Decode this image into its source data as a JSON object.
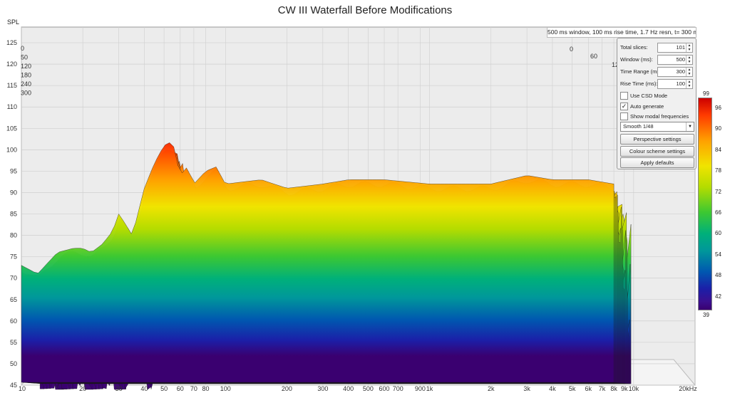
{
  "title": "CW III Waterfall Before Modifications",
  "info_text": "500 ms window, 100 ms rise time,  1.7 Hz resn, t= 300 ms",
  "panel": {
    "total_slices_label": "Total slices:",
    "total_slices": "101",
    "window_label": "Window (ms):",
    "window": "500",
    "time_range_label": "Time Range (ms):",
    "time_range": "300",
    "rise_time_label": "Rise Time (ms):",
    "rise_time": "100",
    "use_csd_label": "Use CSD Mode",
    "use_csd_checked": false,
    "auto_generate_label": "Auto generate",
    "auto_generate_checked": true,
    "show_modal_label": "Show modal frequencies",
    "show_modal_checked": false,
    "smoothing": "Smooth 1/48",
    "perspective_button": "Perspective settings",
    "colour_scheme_button": "Colour scheme settings",
    "apply_defaults_button": "Apply defaults"
  },
  "colorbar": {
    "max": "99",
    "min": "39",
    "labels": [
      "96",
      "90",
      "84",
      "78",
      "72",
      "66",
      "60",
      "54",
      "48",
      "42"
    ]
  },
  "chart_data": {
    "type": "area",
    "chart_style": "3d-waterfall",
    "ylabel": "SPL",
    "xlabel": "",
    "ylim": [
      45,
      125
    ],
    "y_ticks": [
      "125",
      "120",
      "115",
      "110",
      "105",
      "100",
      "95",
      "90",
      "85",
      "80",
      "75",
      "70",
      "65",
      "60",
      "55",
      "50",
      "45"
    ],
    "x_scale": "log",
    "xlim": [
      10,
      20000
    ],
    "x_ticks": [
      "10",
      "20",
      "30",
      "40",
      "50",
      "60",
      "70",
      "80",
      "100",
      "200",
      "300",
      "400",
      "500",
      "600",
      "700",
      "900",
      "1k",
      "2k",
      "3k",
      "4k",
      "5k",
      "6k",
      "7k",
      "8k",
      "9k",
      "10k",
      "20kHz"
    ],
    "time_ticks_left": [
      "0",
      "50",
      "120",
      "180",
      "240",
      "300"
    ],
    "time_ticks_right": [
      "0",
      "60",
      "12"
    ],
    "time_ms": [
      0,
      300
    ],
    "front_slice": {
      "x": [
        10,
        12,
        15,
        18,
        20,
        22,
        25,
        28,
        30,
        32,
        35,
        40,
        45,
        50,
        55,
        60,
        65,
        70,
        80,
        90,
        100,
        150,
        200,
        300,
        400,
        600,
        1000,
        2000,
        3000,
        4000,
        5000,
        6000,
        8000
      ],
      "y": [
        73,
        71,
        76,
        77,
        77,
        76,
        78,
        81,
        85,
        83,
        80,
        91,
        97,
        101,
        102,
        94,
        96,
        92,
        95,
        96,
        92,
        93,
        91,
        92,
        93,
        93,
        92,
        92,
        94,
        93,
        93,
        93,
        92
      ]
    }
  }
}
